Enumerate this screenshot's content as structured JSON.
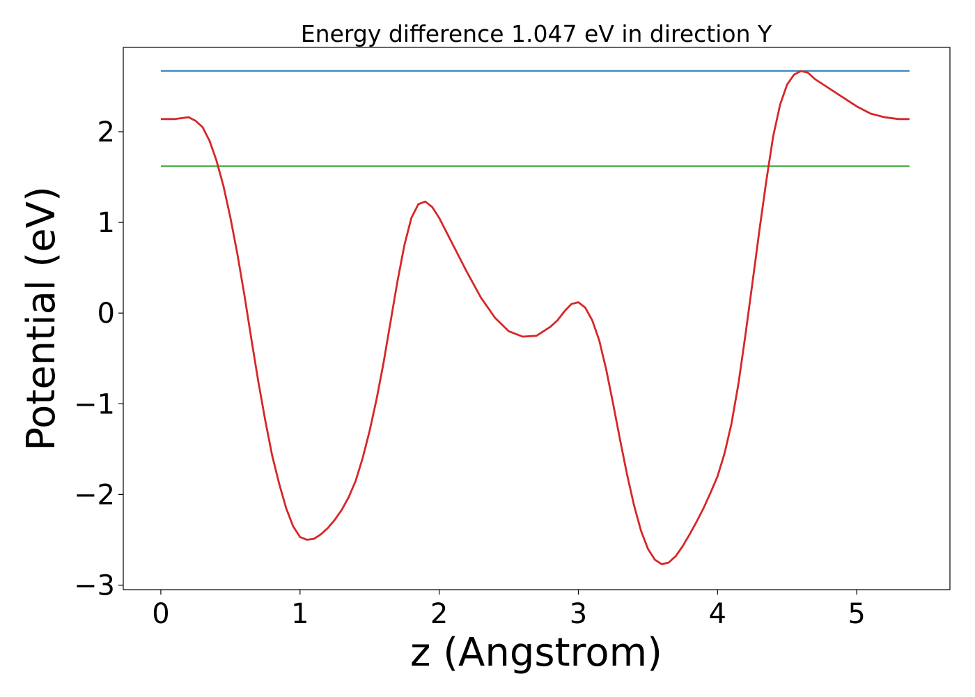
{
  "chart_data": {
    "type": "line",
    "title": "Energy difference 1.047 eV in direction Y",
    "xlabel": "z (Angstrom)",
    "ylabel": "Potential (eV)",
    "xlim": [
      -0.27,
      5.67
    ],
    "ylim": [
      -3.05,
      2.93
    ],
    "xticks": [
      0,
      1,
      2,
      3,
      4,
      5
    ],
    "xtick_labels": [
      "0",
      "1",
      "2",
      "3",
      "4",
      "5"
    ],
    "yticks": [
      2,
      1,
      0,
      -1,
      -2,
      -3
    ],
    "ytick_labels": [
      "2",
      "1",
      "0",
      "−1",
      "−2",
      "−3"
    ],
    "grid": false,
    "series": [
      {
        "color": "#d62728",
        "x": [
          0,
          0.1,
          0.2,
          0.25,
          0.3,
          0.35,
          0.4,
          0.45,
          0.5,
          0.55,
          0.6,
          0.65,
          0.7,
          0.75,
          0.8,
          0.85,
          0.9,
          0.95,
          1.0,
          1.05,
          1.1,
          1.15,
          1.2,
          1.25,
          1.3,
          1.35,
          1.4,
          1.45,
          1.5,
          1.55,
          1.6,
          1.65,
          1.7,
          1.75,
          1.8,
          1.85,
          1.9,
          1.95,
          2.0,
          2.1,
          2.2,
          2.3,
          2.4,
          2.5,
          2.6,
          2.7,
          2.8,
          2.85,
          2.9,
          2.95,
          3.0,
          3.05,
          3.1,
          3.15,
          3.2,
          3.25,
          3.3,
          3.35,
          3.4,
          3.45,
          3.5,
          3.55,
          3.6,
          3.65,
          3.7,
          3.75,
          3.8,
          3.85,
          3.9,
          3.95,
          4.0,
          4.05,
          4.1,
          4.15,
          4.2,
          4.25,
          4.3,
          4.35,
          4.4,
          4.45,
          4.5,
          4.55,
          4.6,
          4.65,
          4.7,
          4.8,
          4.9,
          5.0,
          5.1,
          5.2,
          5.3,
          5.38
        ],
        "y": [
          2.14,
          2.14,
          2.16,
          2.12,
          2.05,
          1.9,
          1.68,
          1.4,
          1.05,
          0.65,
          0.2,
          -0.28,
          -0.75,
          -1.18,
          -1.57,
          -1.88,
          -2.15,
          -2.35,
          -2.47,
          -2.5,
          -2.49,
          -2.44,
          -2.37,
          -2.28,
          -2.17,
          -2.03,
          -1.85,
          -1.6,
          -1.3,
          -0.95,
          -0.55,
          -0.1,
          0.35,
          0.75,
          1.05,
          1.2,
          1.23,
          1.17,
          1.05,
          0.75,
          0.45,
          0.17,
          -0.05,
          -0.2,
          -0.26,
          -0.25,
          -0.15,
          -0.08,
          0.02,
          0.1,
          0.12,
          0.06,
          -0.08,
          -0.3,
          -0.62,
          -1.0,
          -1.4,
          -1.78,
          -2.12,
          -2.4,
          -2.6,
          -2.72,
          -2.77,
          -2.75,
          -2.68,
          -2.57,
          -2.44,
          -2.3,
          -2.15,
          -1.98,
          -1.8,
          -1.55,
          -1.22,
          -0.78,
          -0.25,
          0.32,
          0.9,
          1.45,
          1.95,
          2.3,
          2.52,
          2.63,
          2.67,
          2.65,
          2.58,
          2.48,
          2.38,
          2.28,
          2.2,
          2.16,
          2.14,
          2.14
        ]
      },
      {
        "color": "#1f77b4",
        "x": [
          0,
          5.38
        ],
        "y": [
          2.67,
          2.67
        ]
      },
      {
        "color": "#2ca02c",
        "x": [
          0,
          5.38
        ],
        "y": [
          1.62,
          1.62
        ]
      }
    ]
  }
}
